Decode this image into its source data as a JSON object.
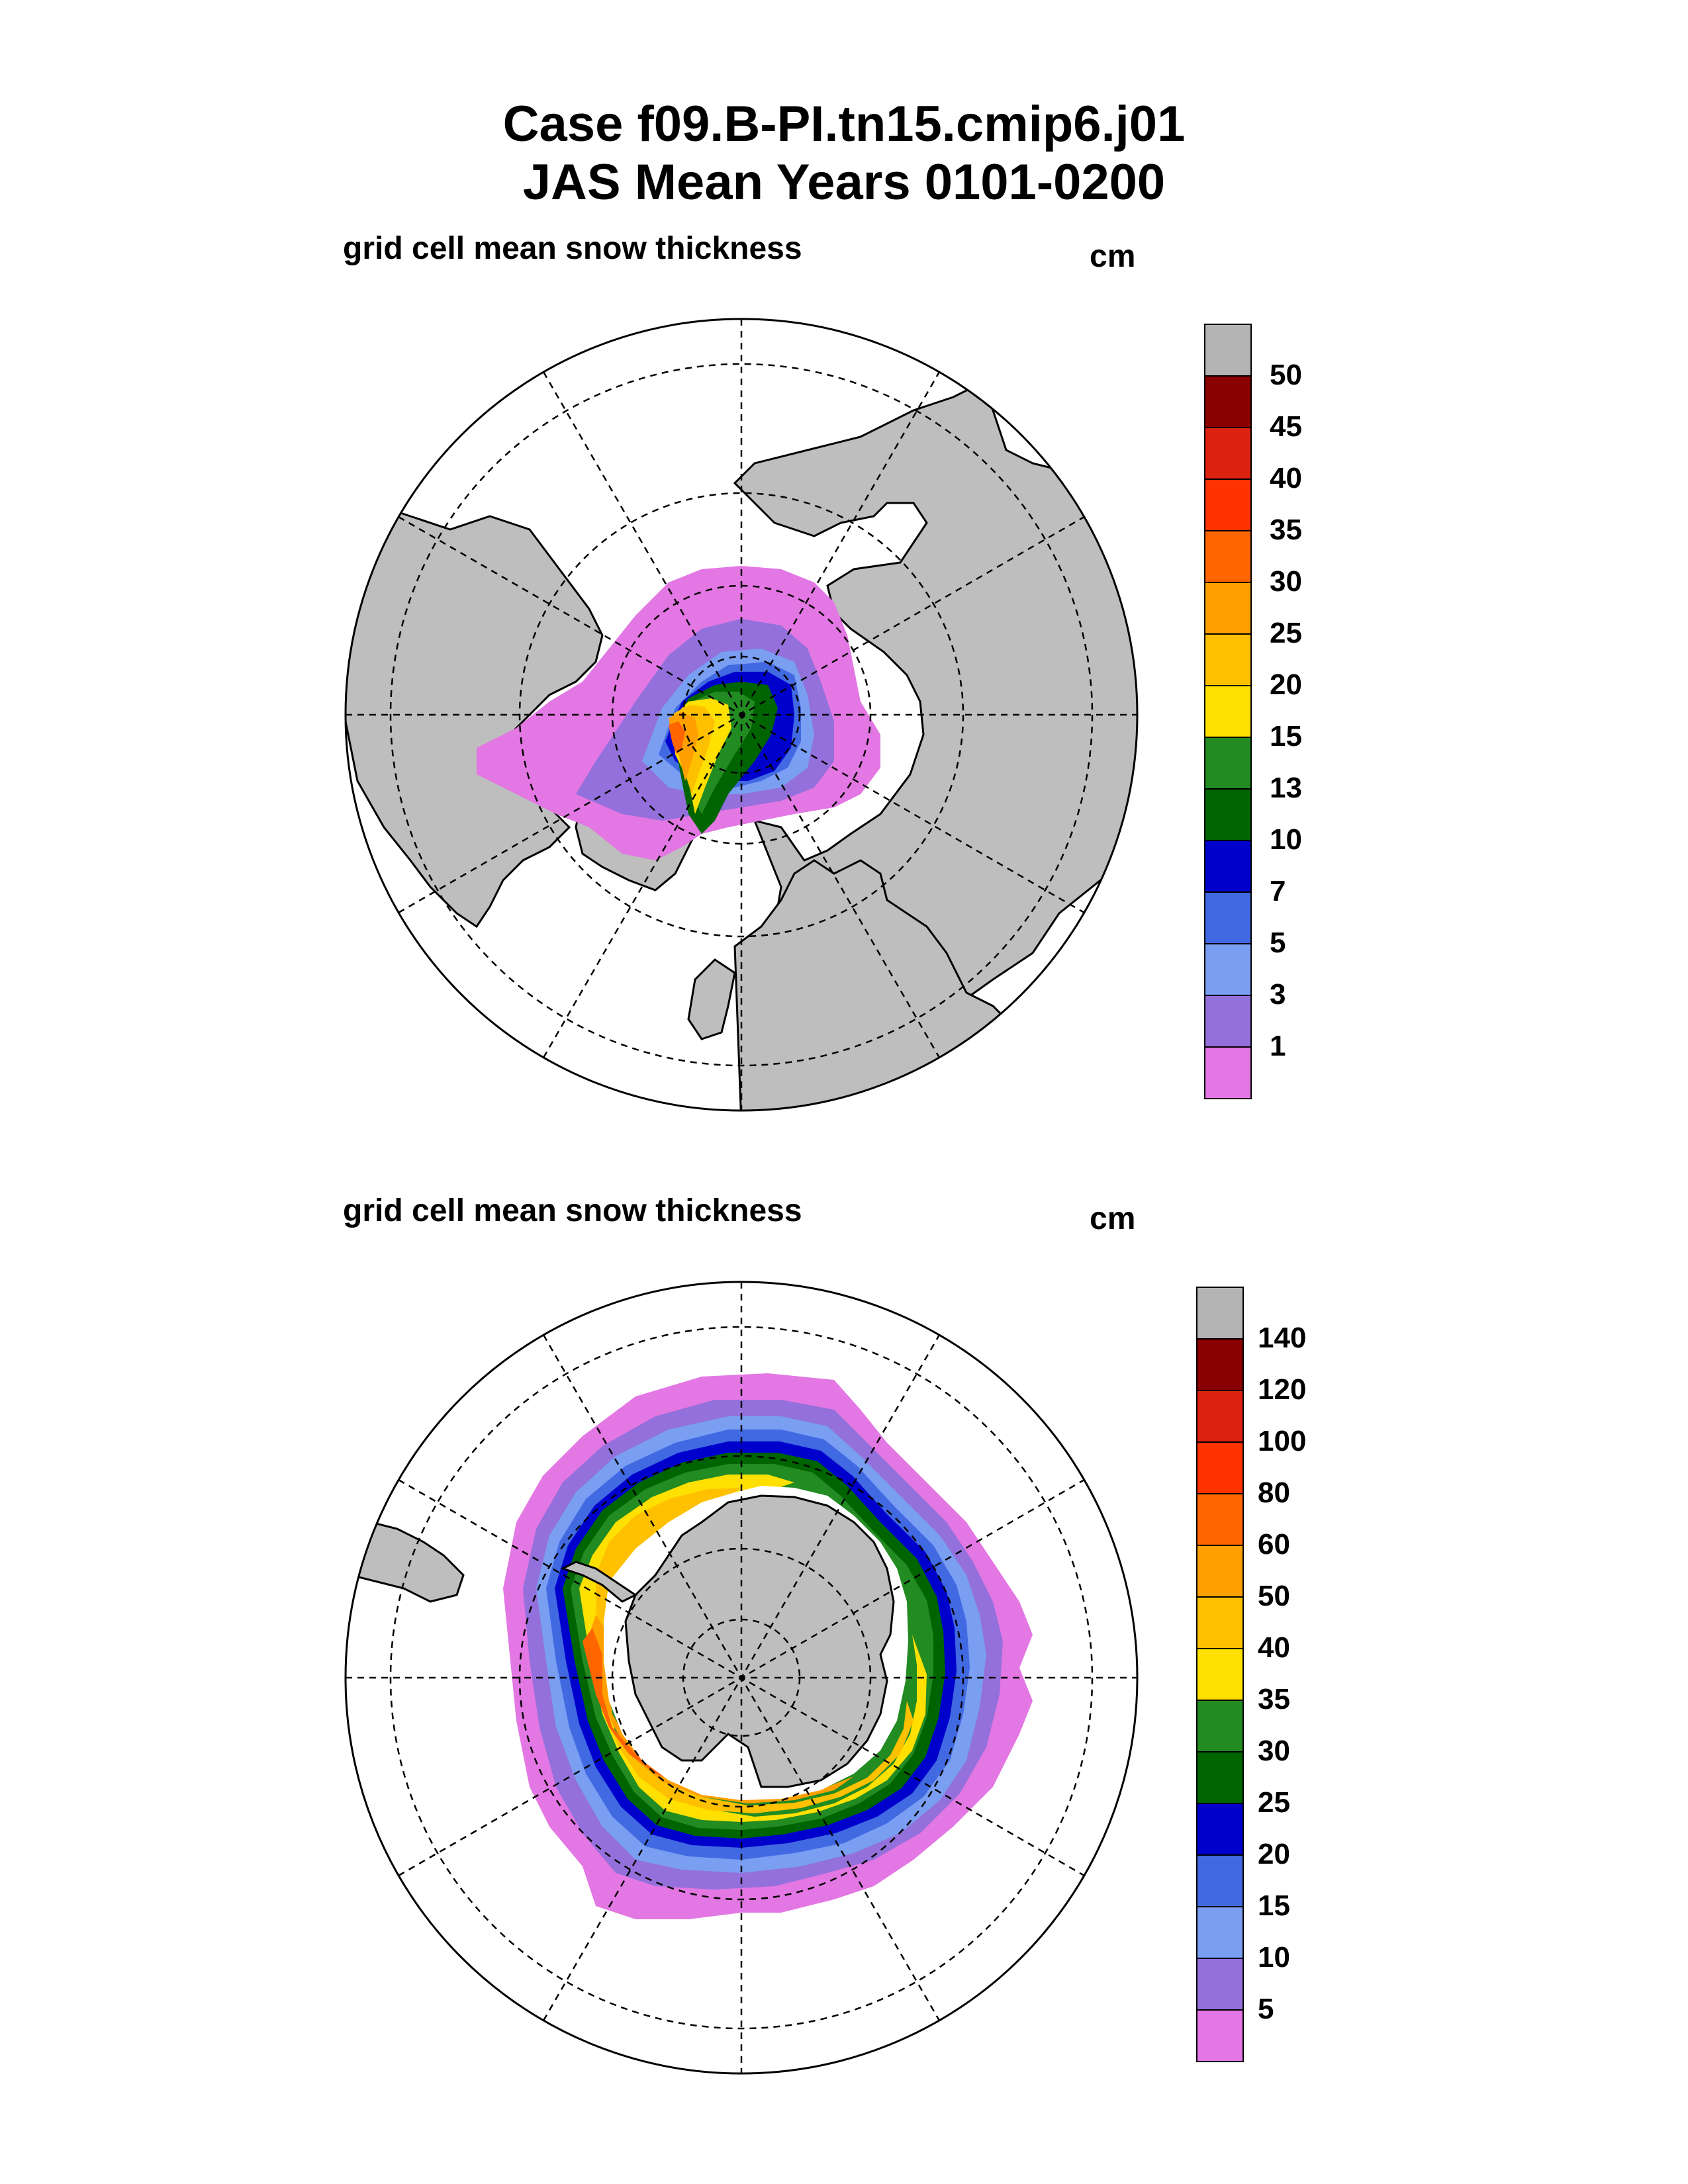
{
  "title": {
    "line1": "Case f09.B-PI.tn15.cmip6.j01",
    "line2": "JAS Mean    Years 0101-0200"
  },
  "panels": [
    {
      "label": "grid cell mean snow thickness",
      "unit": "cm",
      "hemisphere": "north",
      "colorbar_labels": [
        "50",
        "45",
        "40",
        "35",
        "30",
        "25",
        "20",
        "15",
        "13",
        "10",
        "7",
        "5",
        "3",
        "1"
      ]
    },
    {
      "label": "grid cell mean snow thickness",
      "unit": "cm",
      "hemisphere": "south",
      "colorbar_labels": [
        "140",
        "120",
        "100",
        "80",
        "60",
        "50",
        "40",
        "35",
        "30",
        "25",
        "20",
        "15",
        "10",
        "5"
      ]
    }
  ],
  "colors": {
    "land": "#bebebe",
    "ocean": "#ffffff",
    "scale": [
      "#e377e3",
      "#9370db",
      "#799ef2",
      "#4169e1",
      "#0000cd",
      "#006400",
      "#228b22",
      "#ffe000",
      "#ffc000",
      "#ffa000",
      "#ff6600",
      "#ff3300",
      "#dd2211",
      "#8b0000",
      "#b4b4b4"
    ]
  }
}
